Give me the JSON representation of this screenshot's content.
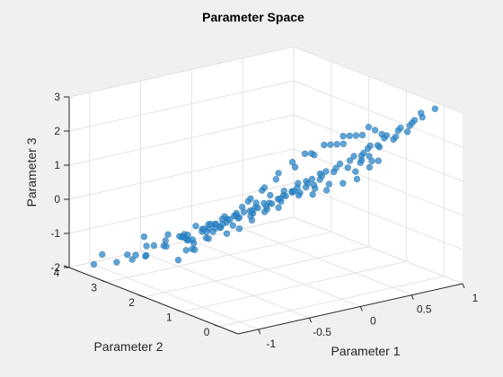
{
  "colors": {
    "figure_bg": "#f0f0f0",
    "axes_bg": "#ffffff",
    "grid": "#e2e2e2",
    "axis_line": "#262626",
    "marker_face": "#2b86c8",
    "marker_edge": "#1f6aa3"
  },
  "chart_data": {
    "type": "scatter",
    "projection": "3d",
    "title": "Parameter Space",
    "xlabel": "Parameter 1",
    "ylabel": "Parameter 2",
    "zlabel": "Parameter 3",
    "xlim": [
      -1.2,
      1.0
    ],
    "ylim": [
      -0.5,
      4.0
    ],
    "zlim": [
      -2,
      3
    ],
    "xticks": [
      -1,
      -0.5,
      0,
      0.5,
      1
    ],
    "yticks": [
      0,
      1,
      2,
      3,
      4
    ],
    "zticks": [
      -2,
      -1,
      0,
      1,
      2,
      3
    ],
    "xticklabels": [
      "-1",
      "-0.5",
      "0",
      "0.5",
      "1"
    ],
    "yticklabels": [
      "0",
      "1",
      "2",
      "3",
      "4"
    ],
    "zticklabels": [
      "-2",
      "-1",
      "0",
      "1",
      "2",
      "3"
    ],
    "grid": true,
    "legend": "none",
    "marker": "filled-circle",
    "marker_alpha": 0.75,
    "points": [
      [
        -1.05,
        3.75,
        -1.9
      ],
      [
        -0.95,
        3.8,
        -1.7
      ],
      [
        -0.9,
        3.55,
        -1.85
      ],
      [
        -0.85,
        3.4,
        -1.6
      ],
      [
        -0.75,
        3.45,
        -1.7
      ],
      [
        -0.7,
        3.1,
        -1.3
      ],
      [
        -0.7,
        3.3,
        -1.4
      ],
      [
        -0.65,
        3.5,
        -1.25
      ],
      [
        -0.6,
        3.0,
        -1.0
      ],
      [
        -0.55,
        3.2,
        -1.3
      ],
      [
        -0.5,
        2.9,
        -1.1
      ],
      [
        -0.55,
        2.7,
        -0.9
      ],
      [
        -0.45,
        3.1,
        -1.2
      ],
      [
        -0.4,
        2.8,
        -0.8
      ],
      [
        -0.35,
        2.6,
        -0.7
      ],
      [
        -0.3,
        2.9,
        -1.0
      ],
      [
        -0.25,
        2.7,
        -0.8
      ],
      [
        -0.2,
        2.5,
        -0.6
      ],
      [
        -0.2,
        3.0,
        -1.1
      ],
      [
        -0.15,
        2.4,
        -0.5
      ],
      [
        -0.1,
        2.8,
        -0.9
      ],
      [
        -0.05,
        2.6,
        -0.7
      ],
      [
        0.0,
        2.3,
        -0.3
      ],
      [
        0.0,
        2.9,
        -1.1
      ],
      [
        0.05,
        2.5,
        -0.6
      ],
      [
        0.1,
        2.2,
        -0.2
      ],
      [
        0.1,
        2.7,
        -0.8
      ],
      [
        0.15,
        2.4,
        -0.5
      ],
      [
        0.2,
        2.1,
        0.0
      ],
      [
        0.2,
        2.6,
        -0.7
      ],
      [
        0.25,
        2.3,
        -0.3
      ],
      [
        0.3,
        2.0,
        0.2
      ],
      [
        0.3,
        2.5,
        -0.6
      ],
      [
        0.35,
        1.9,
        0.4
      ],
      [
        0.4,
        2.2,
        -0.1
      ],
      [
        0.45,
        1.8,
        0.6
      ],
      [
        0.5,
        2.1,
        0.1
      ],
      [
        -0.8,
        2.5,
        -1.0
      ],
      [
        -0.7,
        2.2,
        -0.6
      ],
      [
        -0.65,
        2.4,
        -0.8
      ],
      [
        -0.55,
        2.0,
        -0.3
      ],
      [
        -0.5,
        2.3,
        -0.6
      ],
      [
        -0.45,
        1.9,
        -0.1
      ],
      [
        -0.4,
        2.1,
        -0.3
      ],
      [
        -0.35,
        1.7,
        0.2
      ],
      [
        -0.3,
        2.0,
        -0.2
      ],
      [
        -0.25,
        1.6,
        0.3
      ],
      [
        -0.2,
        1.9,
        -0.1
      ],
      [
        -0.15,
        1.5,
        0.5
      ],
      [
        -0.1,
        1.8,
        0.1
      ],
      [
        -0.05,
        1.4,
        0.6
      ],
      [
        0.0,
        1.7,
        0.2
      ],
      [
        0.05,
        1.3,
        0.8
      ],
      [
        0.1,
        1.6,
        0.4
      ],
      [
        0.15,
        1.2,
        0.9
      ],
      [
        0.2,
        1.5,
        0.5
      ],
      [
        0.25,
        1.1,
        1.1
      ],
      [
        0.3,
        1.4,
        0.7
      ],
      [
        0.35,
        1.0,
        1.3
      ],
      [
        0.4,
        1.3,
        0.9
      ],
      [
        0.45,
        0.9,
        1.5
      ],
      [
        0.5,
        1.2,
        1.0
      ],
      [
        0.55,
        0.8,
        1.7
      ],
      [
        0.6,
        1.1,
        1.2
      ],
      [
        -0.6,
        1.6,
        -0.2
      ],
      [
        -0.5,
        1.4,
        0.1
      ],
      [
        -0.4,
        1.3,
        0.3
      ],
      [
        -0.3,
        1.2,
        0.4
      ],
      [
        -0.2,
        1.1,
        0.6
      ],
      [
        -0.1,
        1.0,
        0.8
      ],
      [
        0.0,
        0.9,
        1.0
      ],
      [
        0.1,
        0.8,
        1.2
      ],
      [
        0.2,
        0.7,
        1.4
      ],
      [
        0.3,
        0.6,
        1.6
      ],
      [
        0.4,
        0.5,
        1.8
      ],
      [
        0.5,
        0.4,
        2.0
      ],
      [
        0.55,
        0.3,
        2.3
      ],
      [
        0.6,
        0.5,
        2.1
      ],
      [
        0.65,
        0.2,
        2.5
      ],
      [
        0.7,
        0.4,
        2.3
      ],
      [
        0.75,
        0.1,
        2.7
      ],
      [
        0.8,
        0.3,
        2.5
      ],
      [
        0.4,
        0.2,
        2.6
      ],
      [
        0.35,
        0.4,
        2.4
      ],
      [
        0.3,
        0.1,
        2.8
      ],
      [
        0.25,
        0.3,
        2.5
      ],
      [
        0.2,
        0.5,
        2.2
      ],
      [
        0.15,
        0.2,
        2.6
      ],
      [
        0.1,
        0.4,
        2.3
      ],
      [
        0.05,
        0.1,
        2.7
      ],
      [
        0.0,
        0.3,
        2.4
      ],
      [
        -0.05,
        0.6,
        2.0
      ],
      [
        -0.1,
        0.2,
        2.5
      ],
      [
        -0.15,
        0.4,
        2.2
      ],
      [
        -0.2,
        0.7,
        1.7
      ],
      [
        -0.25,
        0.3,
        2.3
      ],
      [
        -0.3,
        0.5,
        2.0
      ],
      [
        -0.35,
        0.8,
        1.4
      ],
      [
        -0.4,
        0.6,
        1.7
      ],
      [
        -0.45,
        0.9,
        1.1
      ],
      [
        -0.5,
        0.7,
        1.3
      ],
      [
        -0.55,
        1.0,
        0.8
      ],
      [
        -0.6,
        0.8,
        1.0
      ],
      [
        -0.65,
        1.1,
        0.4
      ],
      [
        -0.7,
        0.9,
        0.6
      ],
      [
        -0.75,
        1.2,
        0.1
      ],
      [
        -0.8,
        1.0,
        0.3
      ],
      [
        -0.85,
        1.3,
        -0.2
      ],
      [
        -0.9,
        1.1,
        -0.1
      ],
      [
        -0.95,
        1.4,
        -0.5
      ],
      [
        -1.0,
        1.2,
        -0.4
      ],
      [
        -1.05,
        1.5,
        -0.8
      ],
      [
        -0.9,
        1.7,
        -0.7
      ],
      [
        -0.8,
        1.8,
        -0.5
      ],
      [
        -0.7,
        1.7,
        -0.3
      ],
      [
        -0.6,
        1.8,
        -0.4
      ],
      [
        0.65,
        0.7,
        2.1
      ],
      [
        0.7,
        0.9,
        1.6
      ],
      [
        0.75,
        0.6,
        2.0
      ],
      [
        0.8,
        0.8,
        1.8
      ],
      [
        0.85,
        0.5,
        2.3
      ],
      [
        0.9,
        0.7,
        2.0
      ],
      [
        0.85,
        0.2,
        2.8
      ],
      [
        0.9,
        0.3,
        2.6
      ],
      [
        0.95,
        0.1,
        2.9
      ],
      [
        0.5,
        0.6,
        1.9
      ],
      [
        0.45,
        0.7,
        1.6
      ],
      [
        0.6,
        0.9,
        1.4
      ],
      [
        0.55,
        1.0,
        1.2
      ],
      [
        0.7,
        1.1,
        1.1
      ],
      [
        0.75,
        1.3,
        0.8
      ],
      [
        0.8,
        1.2,
        1.0
      ],
      [
        0.65,
        1.4,
        0.7
      ],
      [
        0.7,
        1.5,
        0.4
      ],
      [
        0.6,
        1.6,
        0.3
      ],
      [
        0.5,
        1.7,
        0.3
      ],
      [
        0.55,
        1.9,
        0.0
      ],
      [
        0.4,
        1.8,
        0.2
      ],
      [
        0.45,
        2.0,
        -0.1
      ],
      [
        0.35,
        2.1,
        -0.1
      ],
      [
        0.25,
        2.0,
        0.1
      ],
      [
        0.15,
        1.9,
        0.1
      ],
      [
        0.05,
        2.0,
        -0.1
      ],
      [
        -0.05,
        2.1,
        -0.2
      ],
      [
        -0.15,
        2.2,
        -0.3
      ],
      [
        -0.25,
        2.3,
        -0.5
      ],
      [
        -0.35,
        2.4,
        -0.6
      ],
      [
        -0.45,
        2.5,
        -0.8
      ],
      [
        -0.6,
        2.6,
        -0.9
      ],
      [
        -0.75,
        2.7,
        -1.1
      ],
      [
        -0.85,
        2.9,
        -1.4
      ],
      [
        -0.95,
        3.0,
        -1.5
      ],
      [
        -0.4,
        3.0,
        -1.3
      ],
      [
        -0.1,
        3.1,
        -1.2
      ],
      [
        0.05,
        3.2,
        -1.5
      ],
      [
        -0.3,
        3.3,
        -1.5
      ],
      [
        -0.6,
        3.6,
        -1.9
      ],
      [
        -0.2,
        3.4,
        -1.7
      ],
      [
        0.1,
        3.0,
        -1.3
      ],
      [
        0.15,
        2.8,
        -1.0
      ]
    ]
  }
}
